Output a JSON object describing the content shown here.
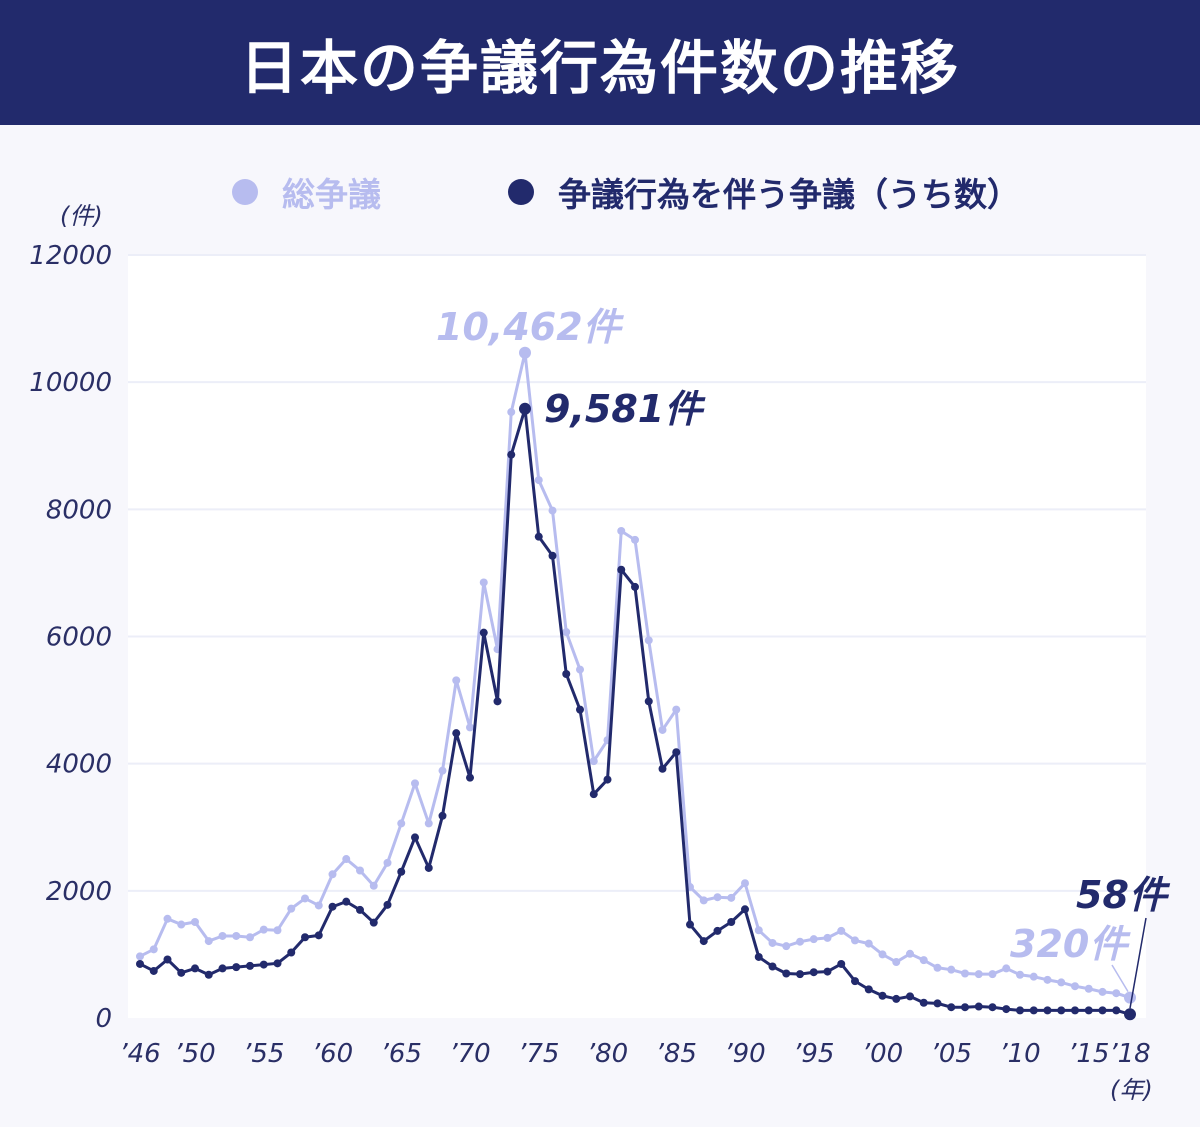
{
  "title": "日本の争議行為件数の推移",
  "colors": {
    "header_bg": "#222a6c",
    "total": "#b7bcef",
    "action": "#222a6c",
    "plot_bg": "#ffffff"
  },
  "chart_data": {
    "type": "line",
    "title": "日本の争議行為件数の推移",
    "ylabel": "(件)",
    "xlabel": "(年)",
    "ylim": [
      0,
      12000
    ],
    "xlim": [
      1946,
      2018
    ],
    "yticks": [
      0,
      2000,
      4000,
      6000,
      8000,
      10000,
      12000
    ],
    "xtick_labels": [
      {
        "year": 1946,
        "label": "’46"
      },
      {
        "year": 1950,
        "label": "’50"
      },
      {
        "year": 1955,
        "label": "’55"
      },
      {
        "year": 1960,
        "label": "’60"
      },
      {
        "year": 1965,
        "label": "’65"
      },
      {
        "year": 1970,
        "label": "’70"
      },
      {
        "year": 1975,
        "label": "’75"
      },
      {
        "year": 1980,
        "label": "’80"
      },
      {
        "year": 1985,
        "label": "’85"
      },
      {
        "year": 1990,
        "label": "’90"
      },
      {
        "year": 1995,
        "label": "’95"
      },
      {
        "year": 2000,
        "label": "’00"
      },
      {
        "year": 2005,
        "label": "’05"
      },
      {
        "year": 2010,
        "label": "’10"
      },
      {
        "year": 2015,
        "label": "’15"
      },
      {
        "year": 2018,
        "label": "’18"
      }
    ],
    "legend_position": "top",
    "x": [
      1946,
      1947,
      1948,
      1949,
      1950,
      1951,
      1952,
      1953,
      1954,
      1955,
      1956,
      1957,
      1958,
      1959,
      1960,
      1961,
      1962,
      1963,
      1964,
      1965,
      1966,
      1967,
      1968,
      1969,
      1970,
      1971,
      1972,
      1973,
      1974,
      1975,
      1976,
      1977,
      1978,
      1979,
      1980,
      1981,
      1982,
      1983,
      1984,
      1985,
      1986,
      1987,
      1988,
      1989,
      1990,
      1991,
      1992,
      1993,
      1994,
      1995,
      1996,
      1997,
      1998,
      1999,
      2000,
      2001,
      2002,
      2003,
      2004,
      2005,
      2006,
      2007,
      2008,
      2009,
      2010,
      2011,
      2012,
      2013,
      2014,
      2015,
      2016,
      2017,
      2018
    ],
    "series": [
      {
        "name": "総争議",
        "values": [
          970,
          1080,
          1560,
          1470,
          1510,
          1210,
          1290,
          1290,
          1270,
          1390,
          1380,
          1720,
          1880,
          1770,
          2260,
          2500,
          2320,
          2080,
          2440,
          3060,
          3690,
          3060,
          3890,
          5310,
          4570,
          6850,
          5800,
          9530,
          10462,
          8460,
          7980,
          6070,
          5480,
          4040,
          4370,
          7660,
          7520,
          5940,
          4530,
          4850,
          2060,
          1850,
          1900,
          1890,
          2120,
          1380,
          1180,
          1130,
          1200,
          1240,
          1260,
          1370,
          1220,
          1170,
          1000,
          880,
          1010,
          910,
          790,
          760,
          700,
          690,
          690,
          780,
          680,
          650,
          600,
          560,
          500,
          460,
          410,
          390,
          320
        ]
      },
      {
        "name": "争議行為を伴う争議（うち数）",
        "values": [
          850,
          740,
          920,
          710,
          780,
          680,
          780,
          800,
          820,
          840,
          860,
          1030,
          1270,
          1300,
          1750,
          1830,
          1700,
          1500,
          1780,
          2300,
          2840,
          2360,
          3180,
          4480,
          3780,
          6060,
          4980,
          8860,
          9581,
          7570,
          7270,
          5410,
          4850,
          3520,
          3750,
          7050,
          6780,
          4980,
          3920,
          4180,
          1470,
          1210,
          1370,
          1510,
          1710,
          960,
          810,
          700,
          690,
          720,
          730,
          850,
          580,
          450,
          350,
          300,
          340,
          240,
          230,
          170,
          170,
          180,
          170,
          140,
          120,
          120,
          120,
          120,
          120,
          120,
          120,
          120,
          58
        ]
      }
    ],
    "annotations": [
      {
        "text": "10,462件",
        "series": 0,
        "x": 1974
      },
      {
        "text": "9,581件",
        "series": 1,
        "x": 1974
      },
      {
        "text": "58件",
        "series": 1,
        "x": 2018
      },
      {
        "text": "320件",
        "series": 0,
        "x": 2018
      }
    ]
  }
}
